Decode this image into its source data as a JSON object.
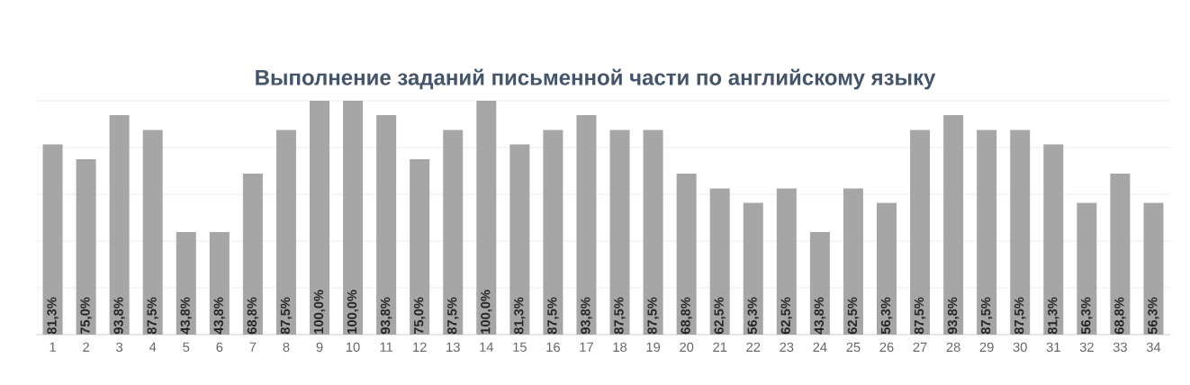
{
  "chart_data": {
    "type": "bar",
    "title": "Выполнение заданий письменной части по английскому языку",
    "categories": [
      "1",
      "2",
      "3",
      "4",
      "5",
      "6",
      "7",
      "8",
      "9",
      "10",
      "11",
      "12",
      "13",
      "14",
      "15",
      "16",
      "17",
      "18",
      "19",
      "20",
      "21",
      "22",
      "23",
      "24",
      "25",
      "26",
      "27",
      "28",
      "29",
      "30",
      "31",
      "32",
      "33",
      "34"
    ],
    "values": [
      81.3,
      75.0,
      93.8,
      87.5,
      43.8,
      43.8,
      68.8,
      87.5,
      100.0,
      100.0,
      93.8,
      75.0,
      87.5,
      100.0,
      81.3,
      87.5,
      93.8,
      87.5,
      87.5,
      68.8,
      62.5,
      56.3,
      62.5,
      43.8,
      62.5,
      56.3,
      87.5,
      93.8,
      87.5,
      87.5,
      81.3,
      56.3,
      68.8,
      56.3
    ],
    "value_labels": [
      "81,3%",
      "75,0%",
      "93,8%",
      "87,5%",
      "43,8%",
      "43,8%",
      "68,8%",
      "87,5%",
      "100,0%",
      "100,0%",
      "93,8%",
      "75,0%",
      "87,5%",
      "100,0%",
      "81,3%",
      "87,5%",
      "93,8%",
      "87,5%",
      "87,5%",
      "68,8%",
      "62,5%",
      "56,3%",
      "62,5%",
      "43,8%",
      "62,5%",
      "56,3%",
      "87,5%",
      "93,8%",
      "87,5%",
      "87,5%",
      "81,3%",
      "56,3%",
      "68,8%",
      "56,3%"
    ],
    "color": "#a6a6a6",
    "ylim": [
      0,
      100
    ],
    "grid": "y"
  }
}
